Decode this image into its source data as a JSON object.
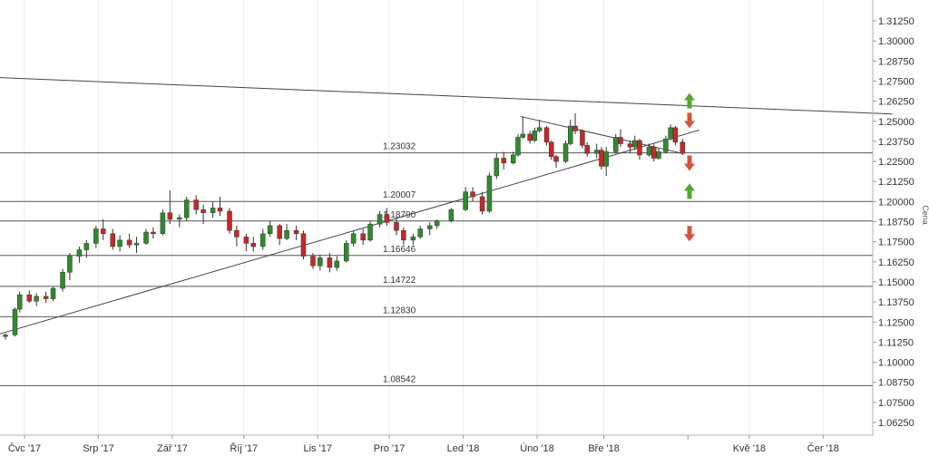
{
  "chart_data": {
    "type": "candlestick",
    "y_axis_title": "Cena",
    "ylim": [
      1.05625,
      1.3175
    ],
    "y_ticks": [
      "1.31250",
      "1.30000",
      "1.28750",
      "1.27500",
      "1.26250",
      "1.25000",
      "1.23750",
      "1.22500",
      "1.21250",
      "1.20000",
      "1.18750",
      "1.17500",
      "1.16250",
      "1.15000",
      "1.13750",
      "1.12500",
      "1.11250",
      "1.10000",
      "1.08750",
      "1.07500",
      "1.06250"
    ],
    "x_ticks": [
      "Čvc '17",
      "Srp '17",
      "Zář '17",
      "Říj '17",
      "Lis '17",
      "Pro '17",
      "Led '18",
      "Úno '18",
      "Bře '18",
      "Kvě '18",
      "Čer '18"
    ],
    "levels": [
      {
        "value": 1.23032,
        "label": "1.23032"
      },
      {
        "value": 1.20007,
        "label": "1.20007"
      },
      {
        "value": 1.1879,
        "label": "1.18790"
      },
      {
        "value": 1.16646,
        "label": "1.16646"
      },
      {
        "value": 1.14722,
        "label": "1.14722"
      },
      {
        "value": 1.1283,
        "label": "1.12830"
      },
      {
        "value": 1.08542,
        "label": "1.08542"
      }
    ],
    "trendlines": [
      {
        "name": "long-resistance",
        "from": [
          "2017-06-15",
          1.2775
        ],
        "to": [
          "2018-06-30",
          1.2545
        ]
      },
      {
        "name": "long-support",
        "from": [
          "2017-06-15",
          1.1152
        ],
        "to": [
          "2018-04-10",
          1.2445
        ]
      },
      {
        "name": "triangle-upper",
        "from": [
          "2018-01-25",
          1.253
        ],
        "to": [
          "2018-04-03",
          1.23
        ]
      }
    ],
    "arrows": [
      {
        "direction": "up",
        "value": 1.2625,
        "color": "#55a630"
      },
      {
        "direction": "down",
        "value": 1.2508,
        "color": "#d4553b"
      },
      {
        "direction": "down",
        "value": 1.2242,
        "color": "#d4553b"
      },
      {
        "direction": "up",
        "value": 1.2062,
        "color": "#55a630"
      },
      {
        "direction": "down",
        "value": 1.1803,
        "color": "#d4553b"
      }
    ],
    "series": [
      {
        "date": "2017-06-16",
        "o": 1.1155,
        "h": 1.1175,
        "l": 1.112,
        "c": 1.116
      },
      {
        "date": "2017-06-23",
        "o": 1.116,
        "h": 1.118,
        "l": 1.114,
        "c": 1.117
      },
      {
        "date": "2017-06-27",
        "o": 1.117,
        "h": 1.134,
        "l": 1.116,
        "c": 1.133
      },
      {
        "date": "2017-06-29",
        "o": 1.133,
        "h": 1.144,
        "l": 1.131,
        "c": 1.142
      },
      {
        "date": "2017-07-03",
        "o": 1.142,
        "h": 1.1445,
        "l": 1.137,
        "c": 1.138
      },
      {
        "date": "2017-07-06",
        "o": 1.138,
        "h": 1.143,
        "l": 1.135,
        "c": 1.141
      },
      {
        "date": "2017-07-10",
        "o": 1.141,
        "h": 1.144,
        "l": 1.137,
        "c": 1.1395
      },
      {
        "date": "2017-07-13",
        "o": 1.1395,
        "h": 1.147,
        "l": 1.138,
        "c": 1.146
      },
      {
        "date": "2017-07-17",
        "o": 1.146,
        "h": 1.158,
        "l": 1.144,
        "c": 1.156
      },
      {
        "date": "2017-07-20",
        "o": 1.156,
        "h": 1.168,
        "l": 1.151,
        "c": 1.166
      },
      {
        "date": "2017-07-24",
        "o": 1.166,
        "h": 1.172,
        "l": 1.162,
        "c": 1.17
      },
      {
        "date": "2017-07-27",
        "o": 1.17,
        "h": 1.176,
        "l": 1.165,
        "c": 1.174
      },
      {
        "date": "2017-07-31",
        "o": 1.174,
        "h": 1.185,
        "l": 1.171,
        "c": 1.183
      },
      {
        "date": "2017-08-03",
        "o": 1.183,
        "h": 1.189,
        "l": 1.176,
        "c": 1.18
      },
      {
        "date": "2017-08-07",
        "o": 1.18,
        "h": 1.183,
        "l": 1.17,
        "c": 1.172
      },
      {
        "date": "2017-08-10",
        "o": 1.172,
        "h": 1.179,
        "l": 1.169,
        "c": 1.176
      },
      {
        "date": "2017-08-14",
        "o": 1.176,
        "h": 1.18,
        "l": 1.171,
        "c": 1.173
      },
      {
        "date": "2017-08-17",
        "o": 1.173,
        "h": 1.178,
        "l": 1.168,
        "c": 1.174
      },
      {
        "date": "2017-08-21",
        "o": 1.174,
        "h": 1.183,
        "l": 1.173,
        "c": 1.181
      },
      {
        "date": "2017-08-24",
        "o": 1.181,
        "h": 1.184,
        "l": 1.177,
        "c": 1.18
      },
      {
        "date": "2017-08-28",
        "o": 1.18,
        "h": 1.195,
        "l": 1.179,
        "c": 1.193
      },
      {
        "date": "2017-08-31",
        "o": 1.193,
        "h": 1.207,
        "l": 1.186,
        "c": 1.189
      },
      {
        "date": "2017-09-04",
        "o": 1.189,
        "h": 1.192,
        "l": 1.184,
        "c": 1.19
      },
      {
        "date": "2017-09-07",
        "o": 1.19,
        "h": 1.203,
        "l": 1.188,
        "c": 1.201
      },
      {
        "date": "2017-09-11",
        "o": 1.201,
        "h": 1.204,
        "l": 1.192,
        "c": 1.195
      },
      {
        "date": "2017-09-14",
        "o": 1.195,
        "h": 1.198,
        "l": 1.186,
        "c": 1.193
      },
      {
        "date": "2017-09-18",
        "o": 1.193,
        "h": 1.2,
        "l": 1.19,
        "c": 1.196
      },
      {
        "date": "2017-09-21",
        "o": 1.196,
        "h": 1.203,
        "l": 1.191,
        "c": 1.194
      },
      {
        "date": "2017-09-25",
        "o": 1.194,
        "h": 1.196,
        "l": 1.18,
        "c": 1.182
      },
      {
        "date": "2017-09-28",
        "o": 1.182,
        "h": 1.185,
        "l": 1.172,
        "c": 1.178
      },
      {
        "date": "2017-10-02",
        "o": 1.178,
        "h": 1.18,
        "l": 1.169,
        "c": 1.174
      },
      {
        "date": "2017-10-05",
        "o": 1.174,
        "h": 1.178,
        "l": 1.169,
        "c": 1.172
      },
      {
        "date": "2017-10-09",
        "o": 1.172,
        "h": 1.183,
        "l": 1.17,
        "c": 1.18
      },
      {
        "date": "2017-10-12",
        "o": 1.18,
        "h": 1.188,
        "l": 1.178,
        "c": 1.185
      },
      {
        "date": "2017-10-16",
        "o": 1.185,
        "h": 1.186,
        "l": 1.173,
        "c": 1.177
      },
      {
        "date": "2017-10-19",
        "o": 1.177,
        "h": 1.186,
        "l": 1.176,
        "c": 1.182
      },
      {
        "date": "2017-10-23",
        "o": 1.182,
        "h": 1.185,
        "l": 1.176,
        "c": 1.18
      },
      {
        "date": "2017-10-26",
        "o": 1.18,
        "h": 1.182,
        "l": 1.164,
        "c": 1.166
      },
      {
        "date": "2017-10-30",
        "o": 1.166,
        "h": 1.168,
        "l": 1.158,
        "c": 1.16
      },
      {
        "date": "2017-11-02",
        "o": 1.16,
        "h": 1.167,
        "l": 1.157,
        "c": 1.165
      },
      {
        "date": "2017-11-06",
        "o": 1.165,
        "h": 1.168,
        "l": 1.156,
        "c": 1.159
      },
      {
        "date": "2017-11-09",
        "o": 1.159,
        "h": 1.166,
        "l": 1.157,
        "c": 1.163
      },
      {
        "date": "2017-11-13",
        "o": 1.163,
        "h": 1.176,
        "l": 1.162,
        "c": 1.174
      },
      {
        "date": "2017-11-16",
        "o": 1.174,
        "h": 1.182,
        "l": 1.172,
        "c": 1.18
      },
      {
        "date": "2017-11-20",
        "o": 1.18,
        "h": 1.183,
        "l": 1.173,
        "c": 1.176
      },
      {
        "date": "2017-11-23",
        "o": 1.176,
        "h": 1.188,
        "l": 1.175,
        "c": 1.186
      },
      {
        "date": "2017-11-27",
        "o": 1.186,
        "h": 1.194,
        "l": 1.184,
        "c": 1.192
      },
      {
        "date": "2017-11-30",
        "o": 1.192,
        "h": 1.196,
        "l": 1.185,
        "c": 1.187
      },
      {
        "date": "2017-12-04",
        "o": 1.187,
        "h": 1.19,
        "l": 1.179,
        "c": 1.182
      },
      {
        "date": "2017-12-07",
        "o": 1.182,
        "h": 1.184,
        "l": 1.173,
        "c": 1.176
      },
      {
        "date": "2017-12-11",
        "o": 1.176,
        "h": 1.18,
        "l": 1.173,
        "c": 1.178
      },
      {
        "date": "2017-12-14",
        "o": 1.178,
        "h": 1.185,
        "l": 1.177,
        "c": 1.183
      },
      {
        "date": "2017-12-18",
        "o": 1.183,
        "h": 1.187,
        "l": 1.179,
        "c": 1.185
      },
      {
        "date": "2017-12-21",
        "o": 1.185,
        "h": 1.189,
        "l": 1.183,
        "c": 1.188
      },
      {
        "date": "2017-12-27",
        "o": 1.188,
        "h": 1.196,
        "l": 1.187,
        "c": 1.195
      },
      {
        "date": "2018-01-02",
        "o": 1.195,
        "h": 1.209,
        "l": 1.194,
        "c": 1.206
      },
      {
        "date": "2018-01-05",
        "o": 1.206,
        "h": 1.209,
        "l": 1.2,
        "c": 1.203
      },
      {
        "date": "2018-01-09",
        "o": 1.203,
        "h": 1.206,
        "l": 1.192,
        "c": 1.194
      },
      {
        "date": "2018-01-12",
        "o": 1.194,
        "h": 1.218,
        "l": 1.193,
        "c": 1.216
      },
      {
        "date": "2018-01-15",
        "o": 1.216,
        "h": 1.23,
        "l": 1.214,
        "c": 1.227
      },
      {
        "date": "2018-01-18",
        "o": 1.227,
        "h": 1.231,
        "l": 1.22,
        "c": 1.224
      },
      {
        "date": "2018-01-22",
        "o": 1.224,
        "h": 1.231,
        "l": 1.223,
        "c": 1.229
      },
      {
        "date": "2018-01-24",
        "o": 1.229,
        "h": 1.242,
        "l": 1.228,
        "c": 1.24
      },
      {
        "date": "2018-01-26",
        "o": 1.24,
        "h": 1.253,
        "l": 1.239,
        "c": 1.242
      },
      {
        "date": "2018-01-29",
        "o": 1.242,
        "h": 1.244,
        "l": 1.236,
        "c": 1.238
      },
      {
        "date": "2018-01-31",
        "o": 1.238,
        "h": 1.246,
        "l": 1.237,
        "c": 1.244
      },
      {
        "date": "2018-02-02",
        "o": 1.244,
        "h": 1.251,
        "l": 1.243,
        "c": 1.246
      },
      {
        "date": "2018-02-05",
        "o": 1.246,
        "h": 1.247,
        "l": 1.235,
        "c": 1.237
      },
      {
        "date": "2018-02-07",
        "o": 1.237,
        "h": 1.238,
        "l": 1.226,
        "c": 1.228
      },
      {
        "date": "2018-02-09",
        "o": 1.228,
        "h": 1.229,
        "l": 1.221,
        "c": 1.225
      },
      {
        "date": "2018-02-13",
        "o": 1.225,
        "h": 1.238,
        "l": 1.224,
        "c": 1.236
      },
      {
        "date": "2018-02-15",
        "o": 1.236,
        "h": 1.251,
        "l": 1.235,
        "c": 1.247
      },
      {
        "date": "2018-02-17",
        "o": 1.247,
        "h": 1.255,
        "l": 1.242,
        "c": 1.244
      },
      {
        "date": "2018-02-20",
        "o": 1.244,
        "h": 1.245,
        "l": 1.233,
        "c": 1.235
      },
      {
        "date": "2018-02-22",
        "o": 1.235,
        "h": 1.237,
        "l": 1.228,
        "c": 1.23
      },
      {
        "date": "2018-02-26",
        "o": 1.23,
        "h": 1.236,
        "l": 1.227,
        "c": 1.232
      },
      {
        "date": "2018-02-28",
        "o": 1.232,
        "h": 1.234,
        "l": 1.22,
        "c": 1.222
      },
      {
        "date": "2018-03-02",
        "o": 1.222,
        "h": 1.234,
        "l": 1.216,
        "c": 1.231
      },
      {
        "date": "2018-03-06",
        "o": 1.231,
        "h": 1.242,
        "l": 1.23,
        "c": 1.24
      },
      {
        "date": "2018-03-08",
        "o": 1.24,
        "h": 1.245,
        "l": 1.234,
        "c": 1.236
      },
      {
        "date": "2018-03-12",
        "o": 1.236,
        "h": 1.238,
        "l": 1.23,
        "c": 1.234
      },
      {
        "date": "2018-03-14",
        "o": 1.234,
        "h": 1.241,
        "l": 1.232,
        "c": 1.238
      },
      {
        "date": "2018-03-16",
        "o": 1.238,
        "h": 1.239,
        "l": 1.226,
        "c": 1.229
      },
      {
        "date": "2018-03-20",
        "o": 1.229,
        "h": 1.236,
        "l": 1.228,
        "c": 1.234
      },
      {
        "date": "2018-03-22",
        "o": 1.234,
        "h": 1.236,
        "l": 1.225,
        "c": 1.227
      },
      {
        "date": "2018-03-24",
        "o": 1.227,
        "h": 1.233,
        "l": 1.226,
        "c": 1.231
      },
      {
        "date": "2018-03-27",
        "o": 1.231,
        "h": 1.241,
        "l": 1.23,
        "c": 1.239
      },
      {
        "date": "2018-03-29",
        "o": 1.239,
        "h": 1.248,
        "l": 1.238,
        "c": 1.246
      },
      {
        "date": "2018-03-31",
        "o": 1.246,
        "h": 1.247,
        "l": 1.235,
        "c": 1.237
      },
      {
        "date": "2018-04-03",
        "o": 1.237,
        "h": 1.239,
        "l": 1.229,
        "c": 1.23
      }
    ]
  }
}
